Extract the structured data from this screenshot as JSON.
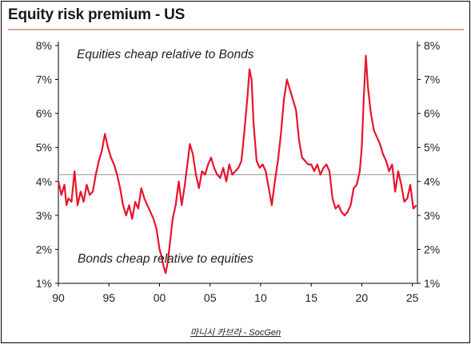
{
  "title": "Equity risk premium - US",
  "source": "마니시 카브라 - SocGen",
  "chart_data": {
    "type": "line",
    "title": "Equity risk premium - US",
    "annotations": [
      "Equities cheap relative to Bonds",
      "Bonds cheap relative to equities"
    ],
    "ylim": [
      1,
      8
    ],
    "xlim": [
      1990,
      2025.5
    ],
    "y_ticks": [
      "1%",
      "2%",
      "3%",
      "4%",
      "5%",
      "6%",
      "7%",
      "8%"
    ],
    "x_ticks": [
      "90",
      "95",
      "00",
      "05",
      "10",
      "15",
      "20",
      "25"
    ],
    "reference_line": 4.2,
    "line_color": "#e8142c",
    "ref_color": "#a6a6a6",
    "series": [
      {
        "x": [
          1990.0,
          1990.3,
          1990.6,
          1990.8,
          1991.0,
          1991.3,
          1991.6,
          1991.9,
          1992.2,
          1992.5,
          1992.8,
          1993.1,
          1993.4,
          1993.7,
          1994.0,
          1994.3,
          1994.6,
          1994.9,
          1995.2,
          1995.5,
          1995.8,
          1996.1,
          1996.4,
          1996.7,
          1997.0,
          1997.3,
          1997.6,
          1997.9,
          1998.2,
          1998.5,
          1998.8,
          1999.1,
          1999.4,
          1999.7,
          2000.0,
          2000.2,
          2000.4,
          2000.6,
          2000.8,
          2001.0,
          2001.3,
          2001.6,
          2001.9,
          2002.2,
          2002.5,
          2002.8,
          2003.0,
          2003.3,
          2003.6,
          2003.9,
          2004.2,
          2004.5,
          2004.8,
          2005.1,
          2005.4,
          2005.7,
          2006.0,
          2006.3,
          2006.6,
          2006.9,
          2007.2,
          2007.5,
          2007.8,
          2008.1,
          2008.4,
          2008.7,
          2008.9,
          2009.1,
          2009.3,
          2009.6,
          2009.9,
          2010.2,
          2010.5,
          2010.8,
          2011.1,
          2011.4,
          2011.7,
          2012.0,
          2012.3,
          2012.6,
          2012.9,
          2013.2,
          2013.5,
          2013.8,
          2014.1,
          2014.4,
          2014.7,
          2015.0,
          2015.3,
          2015.6,
          2015.9,
          2016.2,
          2016.5,
          2016.8,
          2017.1,
          2017.4,
          2017.7,
          2018.0,
          2018.3,
          2018.6,
          2018.9,
          2019.2,
          2019.5,
          2019.8,
          2020.0,
          2020.2,
          2020.4,
          2020.6,
          2020.9,
          2021.2,
          2021.5,
          2021.8,
          2022.1,
          2022.4,
          2022.7,
          2023.0,
          2023.3,
          2023.6,
          2023.9,
          2024.2,
          2024.5,
          2024.8,
          2025.1,
          2025.4
        ],
        "y": [
          4.0,
          3.6,
          3.9,
          3.3,
          3.5,
          3.4,
          4.3,
          3.3,
          3.7,
          3.4,
          3.9,
          3.6,
          3.7,
          4.2,
          4.6,
          4.9,
          5.4,
          5.0,
          4.7,
          4.5,
          4.2,
          3.8,
          3.3,
          3.0,
          3.3,
          2.9,
          3.4,
          3.2,
          3.8,
          3.5,
          3.3,
          3.1,
          2.9,
          2.6,
          2.0,
          1.8,
          1.5,
          1.3,
          1.6,
          2.1,
          2.9,
          3.3,
          4.0,
          3.3,
          3.9,
          4.6,
          5.1,
          4.8,
          4.2,
          3.8,
          4.3,
          4.2,
          4.5,
          4.7,
          4.4,
          4.2,
          4.1,
          4.4,
          4.0,
          4.5,
          4.2,
          4.3,
          4.4,
          4.6,
          5.5,
          6.5,
          7.3,
          7.0,
          5.7,
          4.6,
          4.4,
          4.5,
          4.3,
          3.8,
          3.3,
          4.0,
          4.6,
          5.4,
          6.4,
          7.0,
          6.7,
          6.4,
          6.1,
          5.2,
          4.7,
          4.6,
          4.5,
          4.5,
          4.3,
          4.5,
          4.2,
          4.4,
          4.5,
          4.3,
          3.5,
          3.2,
          3.3,
          3.1,
          3.0,
          3.1,
          3.3,
          3.8,
          3.9,
          4.3,
          5.0,
          6.5,
          7.7,
          6.8,
          6.0,
          5.5,
          5.3,
          5.1,
          4.8,
          4.6,
          4.3,
          4.5,
          3.7,
          4.3,
          3.9,
          3.4,
          3.5,
          3.9,
          3.2,
          3.3
        ]
      }
    ],
    "grid": false,
    "legend": "none"
  }
}
